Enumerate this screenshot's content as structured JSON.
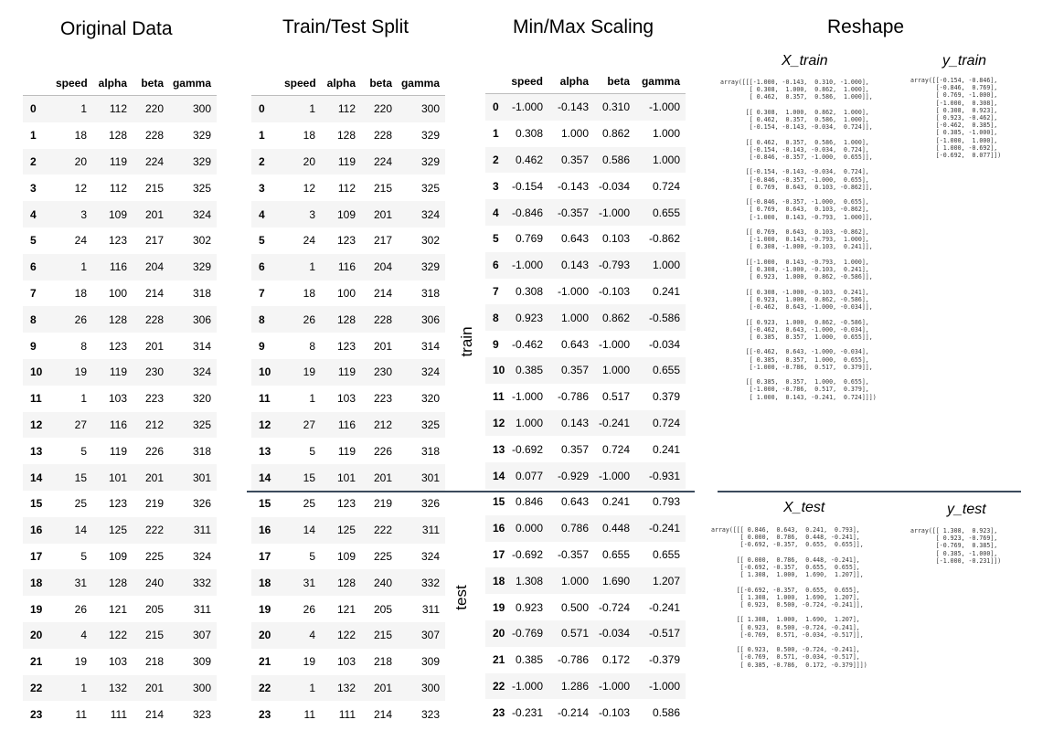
{
  "titles": {
    "original": "Original Data",
    "split": "Train/Test Split",
    "scaling": "Min/Max Scaling",
    "reshape": "Reshape"
  },
  "columns": [
    "speed",
    "alpha",
    "beta",
    "gamma"
  ],
  "original_rows": [
    [
      "0",
      "1",
      "112",
      "220",
      "300"
    ],
    [
      "1",
      "18",
      "128",
      "228",
      "329"
    ],
    [
      "2",
      "20",
      "119",
      "224",
      "329"
    ],
    [
      "3",
      "12",
      "112",
      "215",
      "325"
    ],
    [
      "4",
      "3",
      "109",
      "201",
      "324"
    ],
    [
      "5",
      "24",
      "123",
      "217",
      "302"
    ],
    [
      "6",
      "1",
      "116",
      "204",
      "329"
    ],
    [
      "7",
      "18",
      "100",
      "214",
      "318"
    ],
    [
      "8",
      "26",
      "128",
      "228",
      "306"
    ],
    [
      "9",
      "8",
      "123",
      "201",
      "314"
    ],
    [
      "10",
      "19",
      "119",
      "230",
      "324"
    ],
    [
      "11",
      "1",
      "103",
      "223",
      "320"
    ],
    [
      "12",
      "27",
      "116",
      "212",
      "325"
    ],
    [
      "13",
      "5",
      "119",
      "226",
      "318"
    ],
    [
      "14",
      "15",
      "101",
      "201",
      "301"
    ],
    [
      "15",
      "25",
      "123",
      "219",
      "326"
    ],
    [
      "16",
      "14",
      "125",
      "222",
      "311"
    ],
    [
      "17",
      "5",
      "109",
      "225",
      "324"
    ],
    [
      "18",
      "31",
      "128",
      "240",
      "332"
    ],
    [
      "19",
      "26",
      "121",
      "205",
      "311"
    ],
    [
      "20",
      "4",
      "122",
      "215",
      "307"
    ],
    [
      "21",
      "19",
      "103",
      "218",
      "309"
    ],
    [
      "22",
      "1",
      "132",
      "201",
      "300"
    ],
    [
      "23",
      "11",
      "111",
      "214",
      "323"
    ]
  ],
  "scaled_rows": [
    [
      "0",
      "-1.000",
      "-0.143",
      "0.310",
      "-1.000"
    ],
    [
      "1",
      "0.308",
      "1.000",
      "0.862",
      "1.000"
    ],
    [
      "2",
      "0.462",
      "0.357",
      "0.586",
      "1.000"
    ],
    [
      "3",
      "-0.154",
      "-0.143",
      "-0.034",
      "0.724"
    ],
    [
      "4",
      "-0.846",
      "-0.357",
      "-1.000",
      "0.655"
    ],
    [
      "5",
      "0.769",
      "0.643",
      "0.103",
      "-0.862"
    ],
    [
      "6",
      "-1.000",
      "0.143",
      "-0.793",
      "1.000"
    ],
    [
      "7",
      "0.308",
      "-1.000",
      "-0.103",
      "0.241"
    ],
    [
      "8",
      "0.923",
      "1.000",
      "0.862",
      "-0.586"
    ],
    [
      "9",
      "-0.462",
      "0.643",
      "-1.000",
      "-0.034"
    ],
    [
      "10",
      "0.385",
      "0.357",
      "1.000",
      "0.655"
    ],
    [
      "11",
      "-1.000",
      "-0.786",
      "0.517",
      "0.379"
    ],
    [
      "12",
      "1.000",
      "0.143",
      "-0.241",
      "0.724"
    ],
    [
      "13",
      "-0.692",
      "0.357",
      "0.724",
      "0.241"
    ],
    [
      "14",
      "0.077",
      "-0.929",
      "-1.000",
      "-0.931"
    ],
    [
      "15",
      "0.846",
      "0.643",
      "0.241",
      "0.793"
    ],
    [
      "16",
      "0.000",
      "0.786",
      "0.448",
      "-0.241"
    ],
    [
      "17",
      "-0.692",
      "-0.357",
      "0.655",
      "0.655"
    ],
    [
      "18",
      "1.308",
      "1.000",
      "1.690",
      "1.207"
    ],
    [
      "19",
      "0.923",
      "0.500",
      "-0.724",
      "-0.241"
    ],
    [
      "20",
      "-0.769",
      "0.571",
      "-0.034",
      "-0.517"
    ],
    [
      "21",
      "0.385",
      "-0.786",
      "0.172",
      "-0.379"
    ],
    [
      "22",
      "-1.000",
      "1.286",
      "-1.000",
      "-1.000"
    ],
    [
      "23",
      "-0.231",
      "-0.214",
      "-0.103",
      "0.586"
    ]
  ],
  "labels": {
    "train": "train",
    "test": "test"
  },
  "reshape": {
    "x_train_title": "X_train",
    "y_train_title": "y_train",
    "x_test_title": "X_test",
    "y_test_title": "y_test",
    "x_train": "array([[[-1.000, -0.143,  0.310, -1.000],\n        [ 0.308,  1.000,  0.862,  1.000],\n        [ 0.462,  0.357,  0.586,  1.000]],\n\n       [[ 0.308,  1.000,  0.862,  1.000],\n        [ 0.462,  0.357,  0.586,  1.000],\n        [-0.154, -0.143, -0.034,  0.724]],\n\n       [[ 0.462,  0.357,  0.586,  1.000],\n        [-0.154, -0.143, -0.034,  0.724],\n        [-0.846, -0.357, -1.000,  0.655]],\n\n       [[-0.154, -0.143, -0.034,  0.724],\n        [-0.846, -0.357, -1.000,  0.655],\n        [ 0.769,  0.643,  0.103, -0.862]],\n\n       [[-0.846, -0.357, -1.000,  0.655],\n        [ 0.769,  0.643,  0.103, -0.862],\n        [-1.000,  0.143, -0.793,  1.000]],\n\n       [[ 0.769,  0.643,  0.103, -0.862],\n        [-1.000,  0.143, -0.793,  1.000],\n        [ 0.308, -1.000, -0.103,  0.241]],\n\n       [[-1.000,  0.143, -0.793,  1.000],\n        [ 0.308, -1.000, -0.103,  0.241],\n        [ 0.923,  1.000,  0.862, -0.586]],\n\n       [[ 0.308, -1.000, -0.103,  0.241],\n        [ 0.923,  1.000,  0.862, -0.586],\n        [-0.462,  0.643, -1.000, -0.034]],\n\n       [[ 0.923,  1.000,  0.862, -0.586],\n        [-0.462,  0.643, -1.000, -0.034],\n        [ 0.385,  0.357,  1.000,  0.655]],\n\n       [[-0.462,  0.643, -1.000, -0.034],\n        [ 0.385,  0.357,  1.000,  0.655],\n        [-1.000, -0.786,  0.517,  0.379]],\n\n       [[ 0.385,  0.357,  1.000,  0.655],\n        [-1.000, -0.786,  0.517,  0.379],\n        [ 1.000,  0.143, -0.241,  0.724]]])",
    "y_train": "array([[-0.154, -0.846],\n       [-0.846,  0.769],\n       [ 0.769, -1.000],\n       [-1.000,  0.308],\n       [ 0.308,  0.923],\n       [ 0.923, -0.462],\n       [-0.462,  0.385],\n       [ 0.385, -1.000],\n       [-1.000,  1.000],\n       [ 1.000, -0.692],\n       [-0.692,  0.077]])",
    "x_test": "array([[[ 0.846,  0.643,  0.241,  0.793],\n        [ 0.000,  0.786,  0.448, -0.241],\n        [-0.692, -0.357,  0.655,  0.655]],\n\n       [[ 0.000,  0.786,  0.448, -0.241],\n        [-0.692, -0.357,  0.655,  0.655],\n        [ 1.308,  1.000,  1.690,  1.207]],\n\n       [[-0.692, -0.357,  0.655,  0.655],\n        [ 1.308,  1.000,  1.690,  1.207],\n        [ 0.923,  0.500, -0.724, -0.241]],\n\n       [[ 1.308,  1.000,  1.690,  1.207],\n        [ 0.923,  0.500, -0.724, -0.241],\n        [-0.769,  0.571, -0.034, -0.517]],\n\n       [[ 0.923,  0.500, -0.724, -0.241],\n        [-0.769,  0.571, -0.034, -0.517],\n        [ 0.385, -0.786,  0.172, -0.379]]])",
    "y_test": "array([[ 1.308,  0.923],\n       [ 0.923, -0.769],\n       [-0.769,  0.385],\n       [ 0.385, -1.000],\n       [-1.000, -0.231]])"
  },
  "colors": {
    "divider": "#3b4a5c",
    "row_stripe": "#f5f5f5"
  }
}
